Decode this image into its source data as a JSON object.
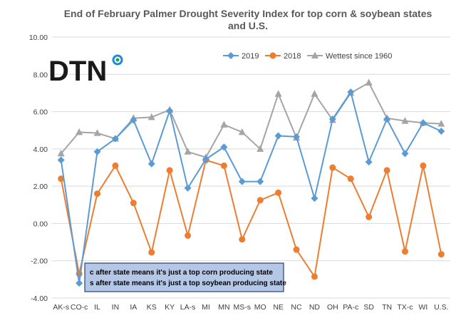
{
  "colors": {
    "series_2019": "#5b9bd5",
    "series_2018": "#ed7d31",
    "series_wettest": "#a5a5a5",
    "gridline": "#d9d9d9",
    "note_fill": "#b4c7e7",
    "note_border": "#2f3f6b",
    "logo_ring_1": "#2e9c48",
    "logo_ring_2": "#1d8cd0"
  },
  "logo": {
    "text": "DTN"
  },
  "note": {
    "line1": "c after state means it's just a top corn producing state",
    "line2": "s after state means it's just a top soybean producing state"
  },
  "chart_data": {
    "type": "line",
    "title": "End of February Palmer Drought Severity Index for top corn & soybean states and U.S.",
    "title_lines": [
      "End of February Palmer Drought Severity Index for top corn & soybean states",
      "and U.S."
    ],
    "categories": [
      "AK-s",
      "CO-c",
      "IL",
      "IN",
      "IA",
      "KS",
      "KY",
      "LA-s",
      "MI",
      "MN",
      "MS-s",
      "MO",
      "NE",
      "NC",
      "ND",
      "OH",
      "PA-c",
      "SD",
      "TN",
      "TX-c",
      "WI",
      "U.S."
    ],
    "ylim": [
      -4,
      10
    ],
    "y_ticks": [
      "-4.00",
      "-2.00",
      "0.00",
      "2.00",
      "4.00",
      "6.00",
      "8.00",
      "10.00"
    ],
    "grid": true,
    "legend_position": "top-right",
    "series": [
      {
        "name": "2019",
        "marker": "diamond",
        "color": "#5b9bd5",
        "values": [
          3.4,
          -3.2,
          3.85,
          4.55,
          5.55,
          3.2,
          6.05,
          1.9,
          3.45,
          4.1,
          2.25,
          2.25,
          4.7,
          4.65,
          1.35,
          5.6,
          7.05,
          3.3,
          5.6,
          3.75,
          5.4,
          4.95
        ]
      },
      {
        "name": "2018",
        "marker": "circle",
        "color": "#ed7d31",
        "values": [
          2.4,
          -2.7,
          1.6,
          3.1,
          1.1,
          -1.55,
          2.85,
          -0.65,
          3.4,
          3.1,
          -0.85,
          1.25,
          1.65,
          -1.4,
          -2.85,
          3.0,
          2.4,
          0.35,
          2.85,
          -1.5,
          3.1,
          -1.65
        ]
      },
      {
        "name": "Wettest since 1960",
        "marker": "triangle",
        "color": "#a5a5a5",
        "values": [
          3.75,
          4.9,
          4.85,
          4.55,
          5.65,
          5.7,
          6.1,
          3.85,
          3.55,
          5.3,
          4.9,
          4.0,
          6.95,
          4.6,
          6.95,
          5.55,
          7.0,
          7.55,
          5.65,
          5.5,
          5.4,
          5.35
        ]
      }
    ]
  }
}
